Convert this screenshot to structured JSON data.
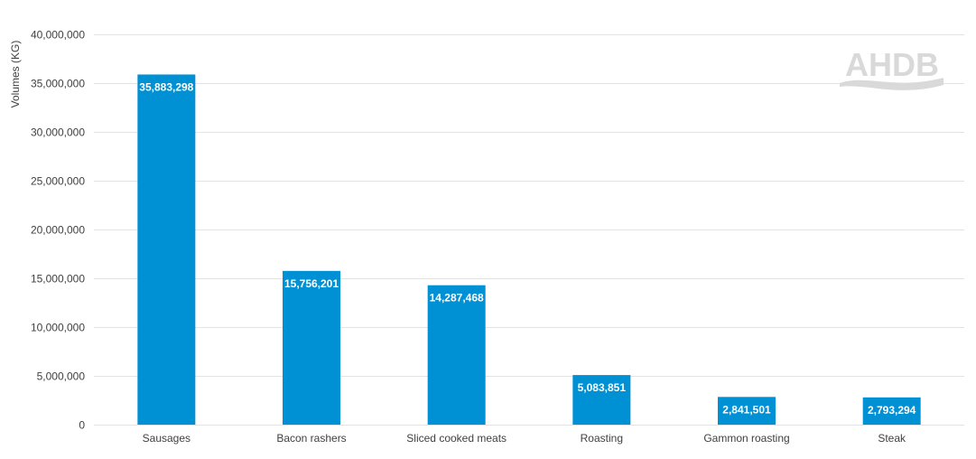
{
  "chart_data": {
    "type": "bar",
    "categories": [
      "Sausages",
      "Bacon rashers",
      "Sliced cooked meats",
      "Roasting",
      "Gammon roasting",
      "Steak"
    ],
    "values": [
      35883298,
      15756201,
      14287468,
      5083851,
      2841501,
      2793294
    ],
    "value_labels": [
      "35,883,298",
      "15,756,201",
      "14,287,468",
      "5,083,851",
      "2,841,501",
      "2,793,294"
    ],
    "title": "",
    "xlabel": "",
    "ylabel": "Volumes (KG)",
    "ylim": [
      0,
      40000000
    ],
    "yticks": [
      0,
      5000000,
      10000000,
      15000000,
      20000000,
      25000000,
      30000000,
      35000000,
      40000000
    ],
    "ytick_labels": [
      "0",
      "5,000,000",
      "10,000,000",
      "15,000,000",
      "20,000,000",
      "25,000,000",
      "30,000,000",
      "35,000,000",
      "40,000,000"
    ],
    "grid": true,
    "legend": "none",
    "bar_color": "#0090d4"
  },
  "watermark": {
    "text": "AHDB",
    "color": "#d9d9d9"
  }
}
